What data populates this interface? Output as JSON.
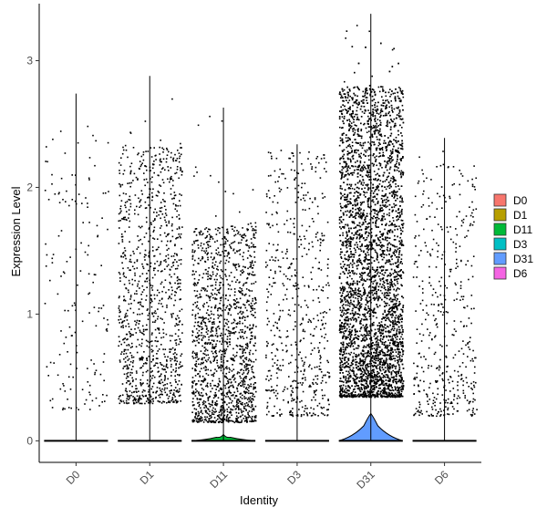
{
  "chart_data": {
    "type": "violin-jitter",
    "xlabel": "Identity",
    "ylabel": "Expression Level",
    "ylim": [
      -0.17,
      3.45
    ],
    "yticks": [
      0,
      1,
      2,
      3
    ],
    "grid": false,
    "legend_placement": "right",
    "categories": [
      "D0",
      "D1",
      "D11",
      "D3",
      "D31",
      "D6"
    ],
    "series": [
      {
        "name": "D0",
        "color": "#F8766D",
        "max": 2.74,
        "points": 160,
        "y_low": 0.25,
        "y_high": 2.5,
        "zero_density": 0.0
      },
      {
        "name": "D1",
        "color": "#B79F00",
        "max": 2.88,
        "points": 1100,
        "y_low": 0.3,
        "y_high": 2.33,
        "zero_density": 0.0
      },
      {
        "name": "D11",
        "color": "#00BA38",
        "max": 2.63,
        "points": 1500,
        "y_low": 0.15,
        "y_high": 1.7,
        "zero_density": 0.07
      },
      {
        "name": "D3",
        "color": "#00BFC4",
        "max": 2.34,
        "points": 560,
        "y_low": 0.2,
        "y_high": 2.3,
        "zero_density": 0.0
      },
      {
        "name": "D31",
        "color": "#619CFF",
        "max": 3.37,
        "points": 5500,
        "y_low": 0.35,
        "y_high": 2.8,
        "zero_density": 0.3
      },
      {
        "name": "D6",
        "color": "#F564E3",
        "max": 2.39,
        "points": 440,
        "y_low": 0.2,
        "y_high": 2.2,
        "zero_density": 0.0
      }
    ]
  }
}
